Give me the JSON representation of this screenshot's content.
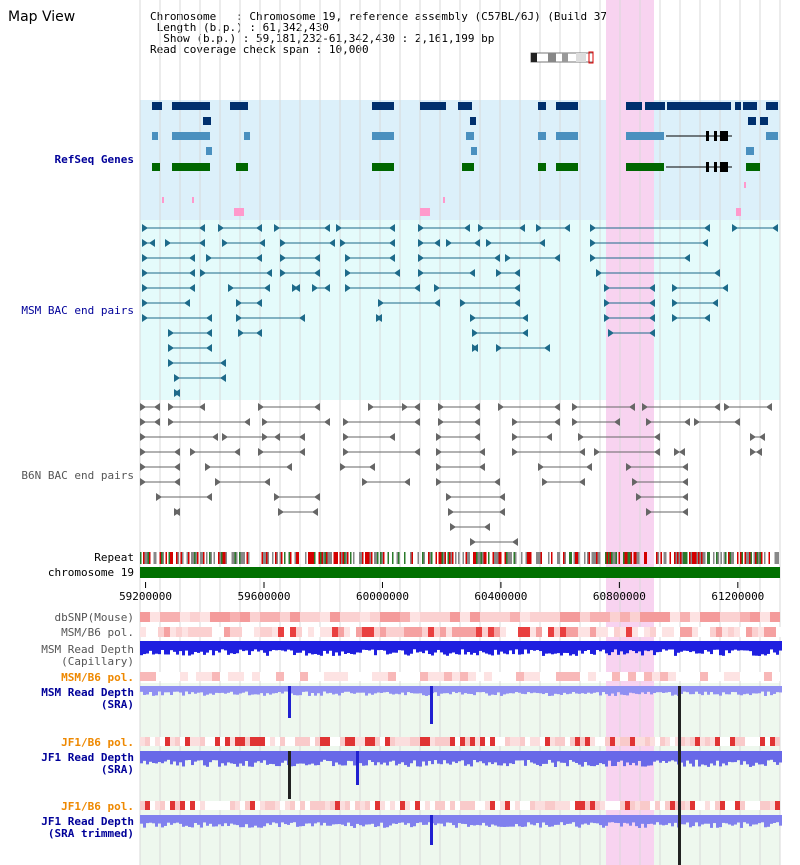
{
  "page_title": "Map View",
  "header": {
    "chromosome_label": "Chromosome",
    "chromosome_value": "Chromosome 19, reference assembly (C57BL/6J) (Build 37)",
    "length_label": "Length (b.p.)",
    "length_value": "61,342,430",
    "show_label": "Show (b.p.)",
    "show_value": "59,181,232-61,342,430 : 2,161,199 bp",
    "span_label": "Read coverage check span",
    "span_value": "10,000"
  },
  "tracks": {
    "refseq_genes": "RefSeq Genes",
    "msm_bac": "MSM BAC end pairs",
    "b6n_bac": "B6N BAC end pairs",
    "repeat": "Repeat",
    "chromosome": "chromosome 19",
    "dbsnp": "dbSNP(Mouse)",
    "msm_b6_pol_1": "MSM/B6 pol.",
    "msm_depth_cap_1": "MSM Read Depth",
    "msm_depth_cap_2": "(Capillary)",
    "msm_b6_pol_2": "MSM/B6 pol.",
    "msm_depth_sra_1": "MSM Read Depth",
    "msm_depth_sra_2": "(SRA)",
    "jf1_b6_pol_1": "JF1/B6 pol.",
    "jf1_depth_sra_1": "JF1 Read Depth",
    "jf1_depth_sra_2": "(SRA)",
    "jf1_b6_pol_2": "JF1/B6 pol.",
    "jf1_depth_trim_1": "JF1 Read Depth",
    "jf1_depth_trim_2": "(SRA trimmed)"
  },
  "ruler": {
    "range_start": 59181232,
    "range_end": 61342430,
    "ticks": [
      "59200000",
      "59600000",
      "60000000",
      "60400000",
      "60800000",
      "61200000"
    ]
  },
  "highlight": {
    "start": 60730000,
    "end": 60810000
  },
  "colors": {
    "title": "#000000",
    "refseq_label": "#000099",
    "msm_label": "#000099",
    "b6n_label": "#555555",
    "pol_orange": "#ee8800",
    "depth_blue": "#000099",
    "refseq_bg": "#dcf0fa",
    "msm_bg": "#e4fbfb",
    "gene_dark": "#00306e",
    "gene_mid": "#4a90bf",
    "gene_green": "#006600",
    "pink": "#ff99cc",
    "msm_line": "#1d6a8a",
    "b6n_line": "#666666",
    "chromosome": "#007000",
    "highlight": "#f8d3f0"
  }
}
